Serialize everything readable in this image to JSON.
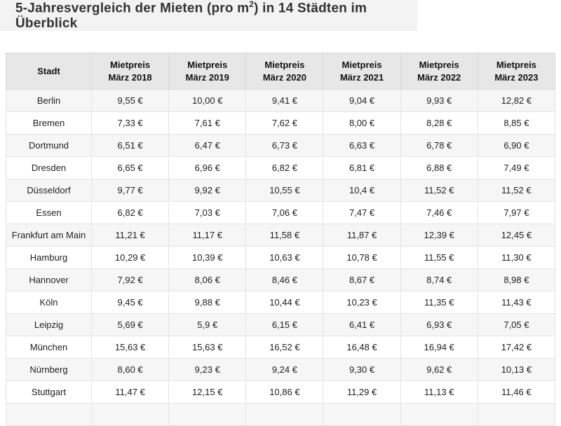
{
  "title": {
    "pre": "5-Jahresvergleich der Mieten (pro m",
    "sup": "2",
    "post": ") in 14 Städten im Überblick"
  },
  "table": {
    "columns": [
      {
        "line1": "Stadt",
        "line2": ""
      },
      {
        "line1": "Mietpreis",
        "line2": "März 2018"
      },
      {
        "line1": "Mietpreis",
        "line2": "März 2019"
      },
      {
        "line1": "Mietpreis",
        "line2": "März 2020"
      },
      {
        "line1": "Mietpreis",
        "line2": "März 2021"
      },
      {
        "line1": "Mietpreis",
        "line2": "März 2022"
      },
      {
        "line1": "Mietpreis",
        "line2": "März 2023"
      }
    ],
    "rows": [
      {
        "city": "Berlin",
        "values": [
          "9,55 €",
          "10,00 €",
          "9,41 €",
          "9,04 €",
          "9,93 €",
          "12,82 €"
        ]
      },
      {
        "city": "Bremen",
        "values": [
          "7,33 €",
          "7,61 €",
          "7,62 €",
          "8,00 €",
          "8,28 €",
          "8,85 €"
        ]
      },
      {
        "city": "Dortmund",
        "values": [
          "6,51 €",
          "6,47 €",
          "6,73 €",
          "6,63 €",
          "6,78 €",
          "6,90 €"
        ]
      },
      {
        "city": "Dresden",
        "values": [
          "6,65 €",
          "6,96 €",
          "6,82 €",
          "6,81 €",
          "6,88 €",
          "7,49 €"
        ]
      },
      {
        "city": "Düsseldorf",
        "values": [
          "9,77 €",
          "9,92 €",
          "10,55 €",
          "10,4 €",
          "11,52 €",
          "11,52 €"
        ]
      },
      {
        "city": "Essen",
        "values": [
          "6,82 €",
          "7,03 €",
          "7,06 €",
          "7,47 €",
          "7,46 €",
          "7,97 €"
        ]
      },
      {
        "city": "Frankfurt am Main",
        "values": [
          "11,21 €",
          "11,17 €",
          "11,58 €",
          "11,87 €",
          "12,39 €",
          "12,45 €"
        ]
      },
      {
        "city": "Hamburg",
        "values": [
          "10,29 €",
          "10,39 €",
          "10,63 €",
          "10,78 €",
          "11,55 €",
          "11,30 €"
        ]
      },
      {
        "city": "Hannover",
        "values": [
          "7,92 €",
          "8,06 €",
          "8,46 €",
          "8,67 €",
          "8,74 €",
          "8,98 €"
        ]
      },
      {
        "city": "Köln",
        "values": [
          "9,45 €",
          "9,88 €",
          "10,44 €",
          "10,23 €",
          "11,35 €",
          "11,43 €"
        ]
      },
      {
        "city": "Leipzig",
        "values": [
          "5,69 €",
          "5,9 €",
          "6,15 €",
          "6,41 €",
          "6,93 €",
          "7,05 €"
        ]
      },
      {
        "city": "München",
        "values": [
          "15,63 €",
          "15,63 €",
          "16,52 €",
          "16,48 €",
          "16,94 €",
          "17,42 €"
        ]
      },
      {
        "city": "Nürnberg",
        "values": [
          "8,60 €",
          "9,23 €",
          "9,24 €",
          "9,30 €",
          "9,62 €",
          "10,13 €"
        ]
      },
      {
        "city": "Stuttgart",
        "values": [
          "11,47 €",
          "12,15 €",
          "10,86 €",
          "11,29 €",
          "11,13 €",
          "11,46 €"
        ]
      }
    ]
  },
  "chart_data": {
    "type": "table",
    "title": "5-Jahresvergleich der Mieten (pro m2) in 14 Städten im Überblick",
    "unit": "EUR pro m2",
    "categories": [
      "März 2018",
      "März 2019",
      "März 2020",
      "März 2021",
      "März 2022",
      "März 2023"
    ],
    "series": [
      {
        "name": "Berlin",
        "values": [
          9.55,
          10.0,
          9.41,
          9.04,
          9.93,
          12.82
        ]
      },
      {
        "name": "Bremen",
        "values": [
          7.33,
          7.61,
          7.62,
          8.0,
          8.28,
          8.85
        ]
      },
      {
        "name": "Dortmund",
        "values": [
          6.51,
          6.47,
          6.73,
          6.63,
          6.78,
          6.9
        ]
      },
      {
        "name": "Dresden",
        "values": [
          6.65,
          6.96,
          6.82,
          6.81,
          6.88,
          7.49
        ]
      },
      {
        "name": "Düsseldorf",
        "values": [
          9.77,
          9.92,
          10.55,
          10.4,
          11.52,
          11.52
        ]
      },
      {
        "name": "Essen",
        "values": [
          6.82,
          7.03,
          7.06,
          7.47,
          7.46,
          7.97
        ]
      },
      {
        "name": "Frankfurt am Main",
        "values": [
          11.21,
          11.17,
          11.58,
          11.87,
          12.39,
          12.45
        ]
      },
      {
        "name": "Hamburg",
        "values": [
          10.29,
          10.39,
          10.63,
          10.78,
          11.55,
          11.3
        ]
      },
      {
        "name": "Hannover",
        "values": [
          7.92,
          8.06,
          8.46,
          8.67,
          8.74,
          8.98
        ]
      },
      {
        "name": "Köln",
        "values": [
          9.45,
          9.88,
          10.44,
          10.23,
          11.35,
          11.43
        ]
      },
      {
        "name": "Leipzig",
        "values": [
          5.69,
          5.9,
          6.15,
          6.41,
          6.93,
          7.05
        ]
      },
      {
        "name": "München",
        "values": [
          15.63,
          15.63,
          16.52,
          16.48,
          16.94,
          17.42
        ]
      },
      {
        "name": "Nürnberg",
        "values": [
          8.6,
          9.23,
          9.24,
          9.3,
          9.62,
          10.13
        ]
      },
      {
        "name": "Stuttgart",
        "values": [
          11.47,
          12.15,
          10.86,
          11.29,
          11.13,
          11.46
        ]
      }
    ]
  }
}
